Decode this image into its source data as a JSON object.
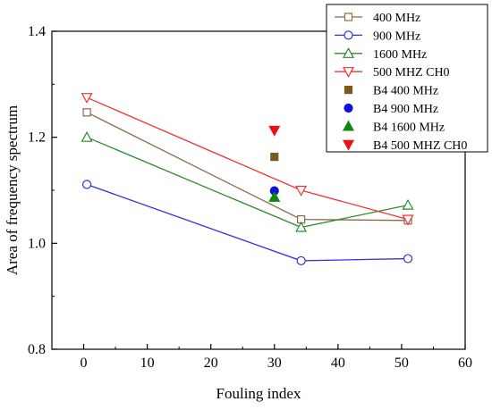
{
  "chart_data": {
    "type": "scatter",
    "title": "",
    "xlabel": "Fouling index",
    "ylabel": "Area of frequency spectrum",
    "xlim": [
      -5,
      60
    ],
    "ylim": [
      0.8,
      1.4
    ],
    "xticks": [
      "0",
      "10",
      "20",
      "30",
      "40",
      "50",
      "60"
    ],
    "yticks": [
      "0.8",
      "1.0",
      "1.2",
      "1.4"
    ],
    "grid": false,
    "legend_position": "top-right",
    "series": [
      {
        "name": "400 MHz",
        "kind": "line",
        "marker": "square-open",
        "color": "#8B6B45",
        "x": [
          0.5,
          34.2,
          51.0
        ],
        "y": [
          1.247,
          1.045,
          1.043
        ]
      },
      {
        "name": "900 MHz",
        "kind": "line",
        "marker": "circle-open",
        "color": "#3333DD",
        "x": [
          0.5,
          34.2,
          51.0
        ],
        "y": [
          1.111,
          0.967,
          0.971
        ]
      },
      {
        "name": "1600 MHz",
        "kind": "line",
        "marker": "triangle-up-open",
        "color": "#2E8B2E",
        "x": [
          0.5,
          34.2,
          51.0
        ],
        "y": [
          1.2,
          1.03,
          1.072
        ]
      },
      {
        "name": "500 MHZ CH0",
        "kind": "line",
        "marker": "triangle-down-open",
        "color": "#EE3333",
        "x": [
          0.5,
          34.2,
          51.0
        ],
        "y": [
          1.275,
          1.1,
          1.045
        ]
      },
      {
        "name": "B4 400 MHz",
        "kind": "point",
        "marker": "square-filled",
        "color": "#7A5A1E",
        "x": [
          30
        ],
        "y": [
          1.163
        ]
      },
      {
        "name": "B4 900 MHz",
        "kind": "point",
        "marker": "circle-filled",
        "color": "#1010DD",
        "x": [
          30
        ],
        "y": [
          1.099
        ]
      },
      {
        "name": "B4 1600 MHz",
        "kind": "point",
        "marker": "triangle-up-filled",
        "color": "#0A8A0A",
        "x": [
          30
        ],
        "y": [
          1.087
        ]
      },
      {
        "name": "B4 500 MHZ CH0",
        "kind": "point",
        "marker": "triangle-down-filled",
        "color": "#EE1111",
        "x": [
          30
        ],
        "y": [
          1.213
        ]
      }
    ]
  }
}
